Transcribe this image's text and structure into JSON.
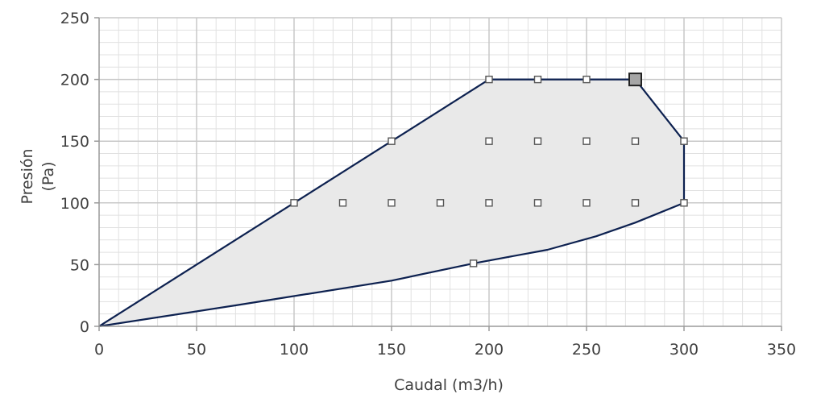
{
  "chart_data": {
    "type": "area",
    "xlabel": "Caudal (m3/h)",
    "ylabel_lines": [
      "Presión",
      "(Pa)"
    ],
    "xlim": [
      0,
      350
    ],
    "ylim": [
      0,
      250
    ],
    "x_ticks": [
      "0",
      "50",
      "100",
      "150",
      "200",
      "250",
      "300",
      "350"
    ],
    "y_ticks": [
      "0",
      "50",
      "100",
      "150",
      "200",
      "250"
    ],
    "x_major_step": 50,
    "x_minor_step": 10,
    "y_major_step": 50,
    "y_minor_step": 10,
    "grid": true,
    "envelope": {
      "fill": "#e9e9e9",
      "stroke": "#0d2150",
      "points": [
        [
          0,
          0
        ],
        [
          100,
          100
        ],
        [
          150,
          150
        ],
        [
          200,
          200
        ],
        [
          275,
          200
        ],
        [
          300,
          150
        ],
        [
          300,
          100
        ],
        [
          275,
          84
        ],
        [
          255,
          73
        ],
        [
          230,
          62
        ],
        [
          192,
          51
        ],
        [
          150,
          37
        ],
        [
          70,
          17
        ],
        [
          0,
          0
        ]
      ]
    },
    "markers": [
      [
        100,
        100
      ],
      [
        125,
        100
      ],
      [
        150,
        100
      ],
      [
        175,
        100
      ],
      [
        200,
        100
      ],
      [
        225,
        100
      ],
      [
        250,
        100
      ],
      [
        275,
        100
      ],
      [
        300,
        100
      ],
      [
        150,
        150
      ],
      [
        200,
        150
      ],
      [
        225,
        150
      ],
      [
        250,
        150
      ],
      [
        275,
        150
      ],
      [
        300,
        150
      ],
      [
        200,
        200
      ],
      [
        225,
        200
      ],
      [
        250,
        200
      ],
      [
        192,
        51
      ]
    ],
    "highlight_marker": [
      275,
      200
    ],
    "colors": {
      "grid_major": "#c8c8c8",
      "grid_minor": "#e1e1e1",
      "axis": "#9a9a9a",
      "marker": "#555555",
      "highlight_fill": "#a6a6a6",
      "highlight_stroke": "#222222"
    }
  }
}
